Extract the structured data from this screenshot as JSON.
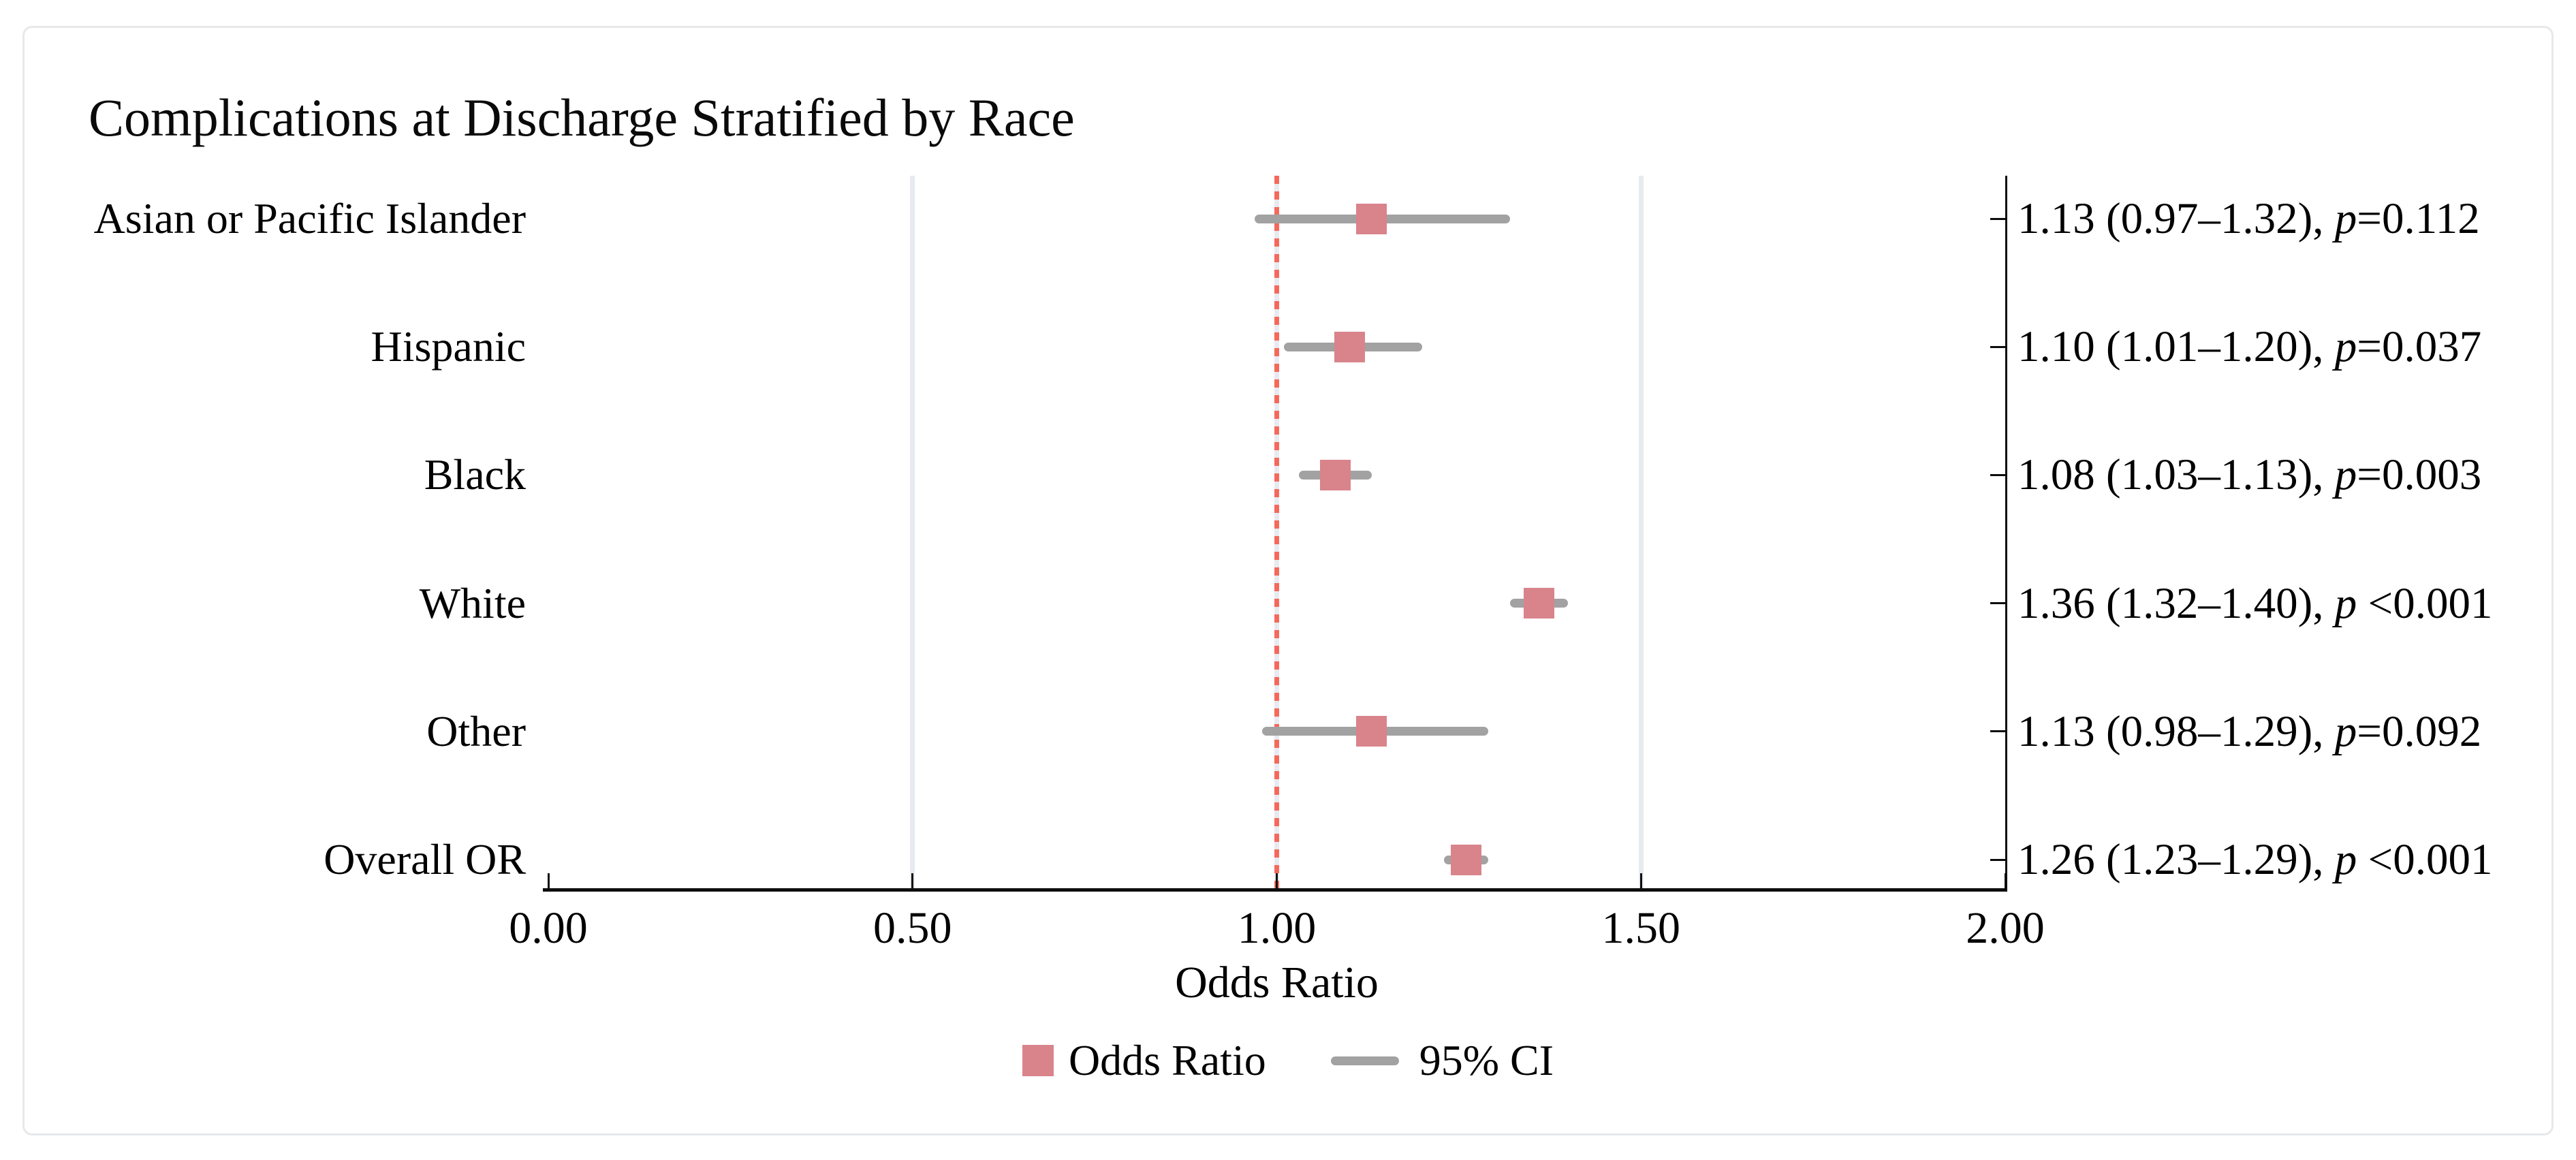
{
  "title": "Complications at Discharge Stratified by Race",
  "chart_data": {
    "type": "scatter",
    "subtype": "forest-plot",
    "title": "Complications at Discharge Stratified by Race",
    "xlabel": "Odds Ratio",
    "ylabel": "",
    "xlim": [
      0,
      2
    ],
    "xticks": [
      "0.00",
      "0.50",
      "1.00",
      "1.50",
      "2.00"
    ],
    "xtick_values": [
      0,
      0.5,
      1,
      1.5,
      2
    ],
    "gridline_values": [
      0.5,
      1.0,
      1.5
    ],
    "grid": "on",
    "reference_line": 1.0,
    "legend_position": "bottom-center",
    "rows": [
      {
        "label": "Asian or Pacific Islander",
        "or": 1.13,
        "ci_low": 0.97,
        "ci_high": 1.32,
        "p": "0.112",
        "annotation_prefix": "1.13 (0.97–1.32), ",
        "p_label": "p",
        "p_rest": "=0.112"
      },
      {
        "label": "Hispanic",
        "or": 1.1,
        "ci_low": 1.01,
        "ci_high": 1.2,
        "p": "0.037",
        "annotation_prefix": "1.10 (1.01–1.20), ",
        "p_label": "p",
        "p_rest": "=0.037"
      },
      {
        "label": "Black",
        "or": 1.08,
        "ci_low": 1.03,
        "ci_high": 1.13,
        "p": "0.003",
        "annotation_prefix": "1.08 (1.03–1.13), ",
        "p_label": "p",
        "p_rest": "=0.003"
      },
      {
        "label": "White",
        "or": 1.36,
        "ci_low": 1.32,
        "ci_high": 1.4,
        "p": "<0.001",
        "annotation_prefix": "1.36 (1.32–1.40), ",
        "p_label": "p",
        "p_rest": " <0.001"
      },
      {
        "label": "Other",
        "or": 1.13,
        "ci_low": 0.98,
        "ci_high": 1.29,
        "p": "0.092",
        "annotation_prefix": "1.13 (0.98–1.29), ",
        "p_label": "p",
        "p_rest": "=0.092"
      },
      {
        "label": "Overall OR",
        "or": 1.26,
        "ci_low": 1.23,
        "ci_high": 1.29,
        "p": "<0.001",
        "annotation_prefix": "1.26 (1.23–1.29), ",
        "p_label": "p",
        "p_rest": " <0.001"
      }
    ],
    "legend": [
      {
        "symbol": "square",
        "label": "Odds Ratio"
      },
      {
        "symbol": "line",
        "label": "95% CI"
      }
    ],
    "colors": {
      "marker": "#d9838b",
      "ci": "#a2a2a2",
      "reference": "#f4695b",
      "gridline": "#e7ebef",
      "axis": "#0d0d0d",
      "border": "#e6e8ea"
    }
  }
}
